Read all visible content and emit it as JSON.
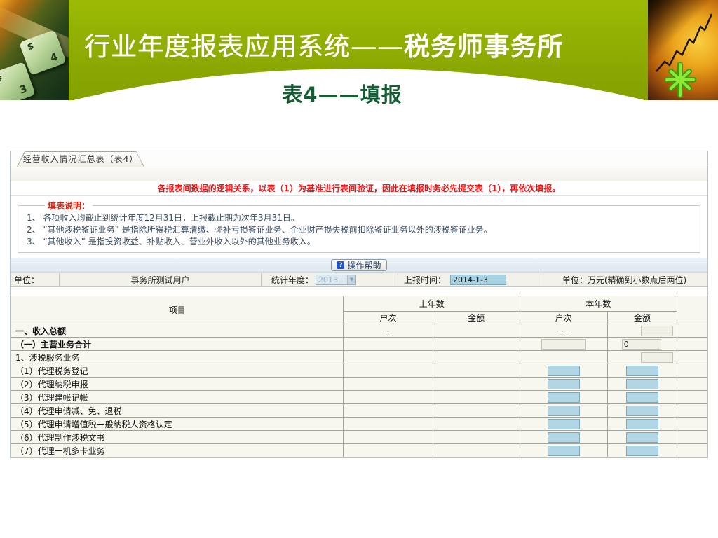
{
  "slide": {
    "title_prefix": "行业年度报表应用系统——",
    "title_emphasis": "税务师事务所",
    "subtitle": "表4——填报"
  },
  "decor": {
    "key1": {
      "symbol": "$",
      "number": "4"
    },
    "key2": {
      "symbol": "#",
      "number": "3"
    },
    "help_icon_glyph": "?",
    "dropdown_arrow_glyph": "▼"
  },
  "colors": {
    "banner_green": "#8dab02",
    "subtitle_green": "#135e35",
    "notice_red": "#ee1414",
    "editable_input_blue": "#b2d6e3",
    "disabled_input_gray": "#f1f0e6",
    "table_background": "#f8f7ef"
  },
  "screenshot": {
    "tab_label": "经营收入情况汇总表（表4）",
    "notice": "各报表间数据的逻辑关系，以表（1）为基准进行表间验证，因此在填报时务必先提交表（1），再依次填报。",
    "instructions": {
      "legend": "填表说明：",
      "items": [
        "1、 各项收入均截止到统计年度12月31日，上报截止期为次年3月31日。",
        "2、 “其他涉税鉴证业务” 是指除所得税汇算清缴、弥补亏损鉴证业务、企业财产损失税前扣除鉴证业务以外的涉税鉴证业务。",
        "3、 “其他收入” 是指投资收益、补贴收入、营业外收入以外的其他业务收入。"
      ]
    },
    "help_button_label": "操作帮助",
    "info_bar": {
      "unit_label": "单位：",
      "unit_value": "事务所测试用户",
      "year_label": "统计年度：",
      "year_value": "2013",
      "report_time_label": "上报时间：",
      "report_time_value": "2014-1-3",
      "unit_note": "单位：万元(精确到小数点后两位)"
    },
    "table": {
      "col_item": "项目",
      "col_last_year": "上年数",
      "col_this_year": "本年数",
      "col_households": "户次",
      "col_amount": "金额",
      "rows": [
        {
          "label": "一、收入总额",
          "bold": true,
          "ly_hc": "--",
          "ly_je": "",
          "ty_hc_box": "none",
          "ty_hc_text": "---",
          "ty_je_box": "gray-right",
          "ty_je_value": ""
        },
        {
          "label": "（一）主营业务合计",
          "bold": true,
          "ly_hc": "",
          "ly_je": "",
          "ty_hc_box": "gray-wide",
          "ty_hc_text": "",
          "ty_je_box": "gray-left",
          "ty_je_value": "0"
        },
        {
          "label": "1、涉税服务业务",
          "bold": false,
          "ly_hc": "",
          "ly_je": "",
          "ty_hc_box": "none",
          "ty_hc_text": "",
          "ty_je_box": "gray-right",
          "ty_je_value": ""
        },
        {
          "label": "（1）代理税务登记",
          "bold": false,
          "ly_hc": "",
          "ly_je": "",
          "ty_hc_box": "blue",
          "ty_hc_text": "",
          "ty_je_box": "blue",
          "ty_je_value": ""
        },
        {
          "label": "（2）代理纳税申报",
          "bold": false,
          "ly_hc": "",
          "ly_je": "",
          "ty_hc_box": "blue",
          "ty_hc_text": "",
          "ty_je_box": "blue",
          "ty_je_value": ""
        },
        {
          "label": "（3）代理建帐记帐",
          "bold": false,
          "ly_hc": "",
          "ly_je": "",
          "ty_hc_box": "blue",
          "ty_hc_text": "",
          "ty_je_box": "blue",
          "ty_je_value": ""
        },
        {
          "label": "（4）代理申请减、免、退税",
          "bold": false,
          "ly_hc": "",
          "ly_je": "",
          "ty_hc_box": "blue",
          "ty_hc_text": "",
          "ty_je_box": "blue",
          "ty_je_value": ""
        },
        {
          "label": "（5）代理申请增值税一般纳税人资格认定",
          "bold": false,
          "ly_hc": "",
          "ly_je": "",
          "ty_hc_box": "blue",
          "ty_hc_text": "",
          "ty_je_box": "blue",
          "ty_je_value": ""
        },
        {
          "label": "（6）代理制作涉税文书",
          "bold": false,
          "ly_hc": "",
          "ly_je": "",
          "ty_hc_box": "blue",
          "ty_hc_text": "",
          "ty_je_box": "blue",
          "ty_je_value": ""
        },
        {
          "label": "（7）代理一机多卡业务",
          "bold": false,
          "ly_hc": "",
          "ly_je": "",
          "ty_hc_box": "blue",
          "ty_hc_text": "",
          "ty_je_box": "blue",
          "ty_je_value": ""
        }
      ]
    }
  }
}
